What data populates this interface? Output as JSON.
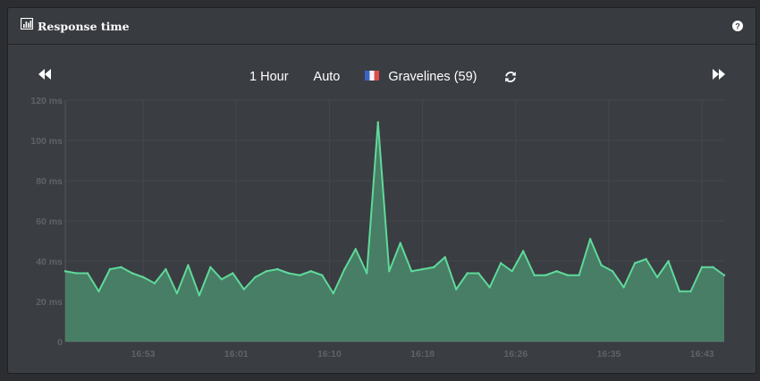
{
  "panel": {
    "title": "Response time",
    "title_icon": "bar-chart-icon",
    "help_icon": "question-circle-icon"
  },
  "toolbar": {
    "prev_icon": "fast-backward-icon",
    "next_icon": "fast-forward-icon",
    "range_label": "1 Hour",
    "mode_label": "Auto",
    "location_label": "Gravelines (59)",
    "location_flag": "france-flag-icon",
    "refresh_icon": "refresh-icon"
  },
  "colors": {
    "line": "#5fd99a",
    "fill": "#4a8a6b",
    "grid": "#45484d",
    "tick": "#5f6368"
  },
  "chart_data": {
    "type": "area",
    "title": "Response time",
    "y_unit": "ms",
    "ylim": [
      0,
      120
    ],
    "y_ticks": [
      "0",
      "20 ms",
      "40 ms",
      "60 ms",
      "80 ms",
      "100 ms",
      "120 ms"
    ],
    "x_ticks": [
      "16:53",
      "16:01",
      "16:10",
      "16:18",
      "16:26",
      "16:35",
      "16:43"
    ],
    "grid": true,
    "legend": "none",
    "values": [
      35,
      34,
      34,
      25,
      36,
      37,
      34,
      32,
      29,
      36,
      24,
      38,
      23,
      37,
      31,
      34,
      26,
      32,
      35,
      36,
      34,
      33,
      35,
      33,
      24,
      36,
      46,
      34,
      109,
      35,
      49,
      35,
      36,
      37,
      42,
      26,
      34,
      34,
      27,
      39,
      35,
      45,
      33,
      33,
      35,
      33,
      33,
      51,
      38,
      35,
      27,
      39,
      41,
      32,
      40,
      25,
      25,
      37,
      37,
      33
    ]
  }
}
